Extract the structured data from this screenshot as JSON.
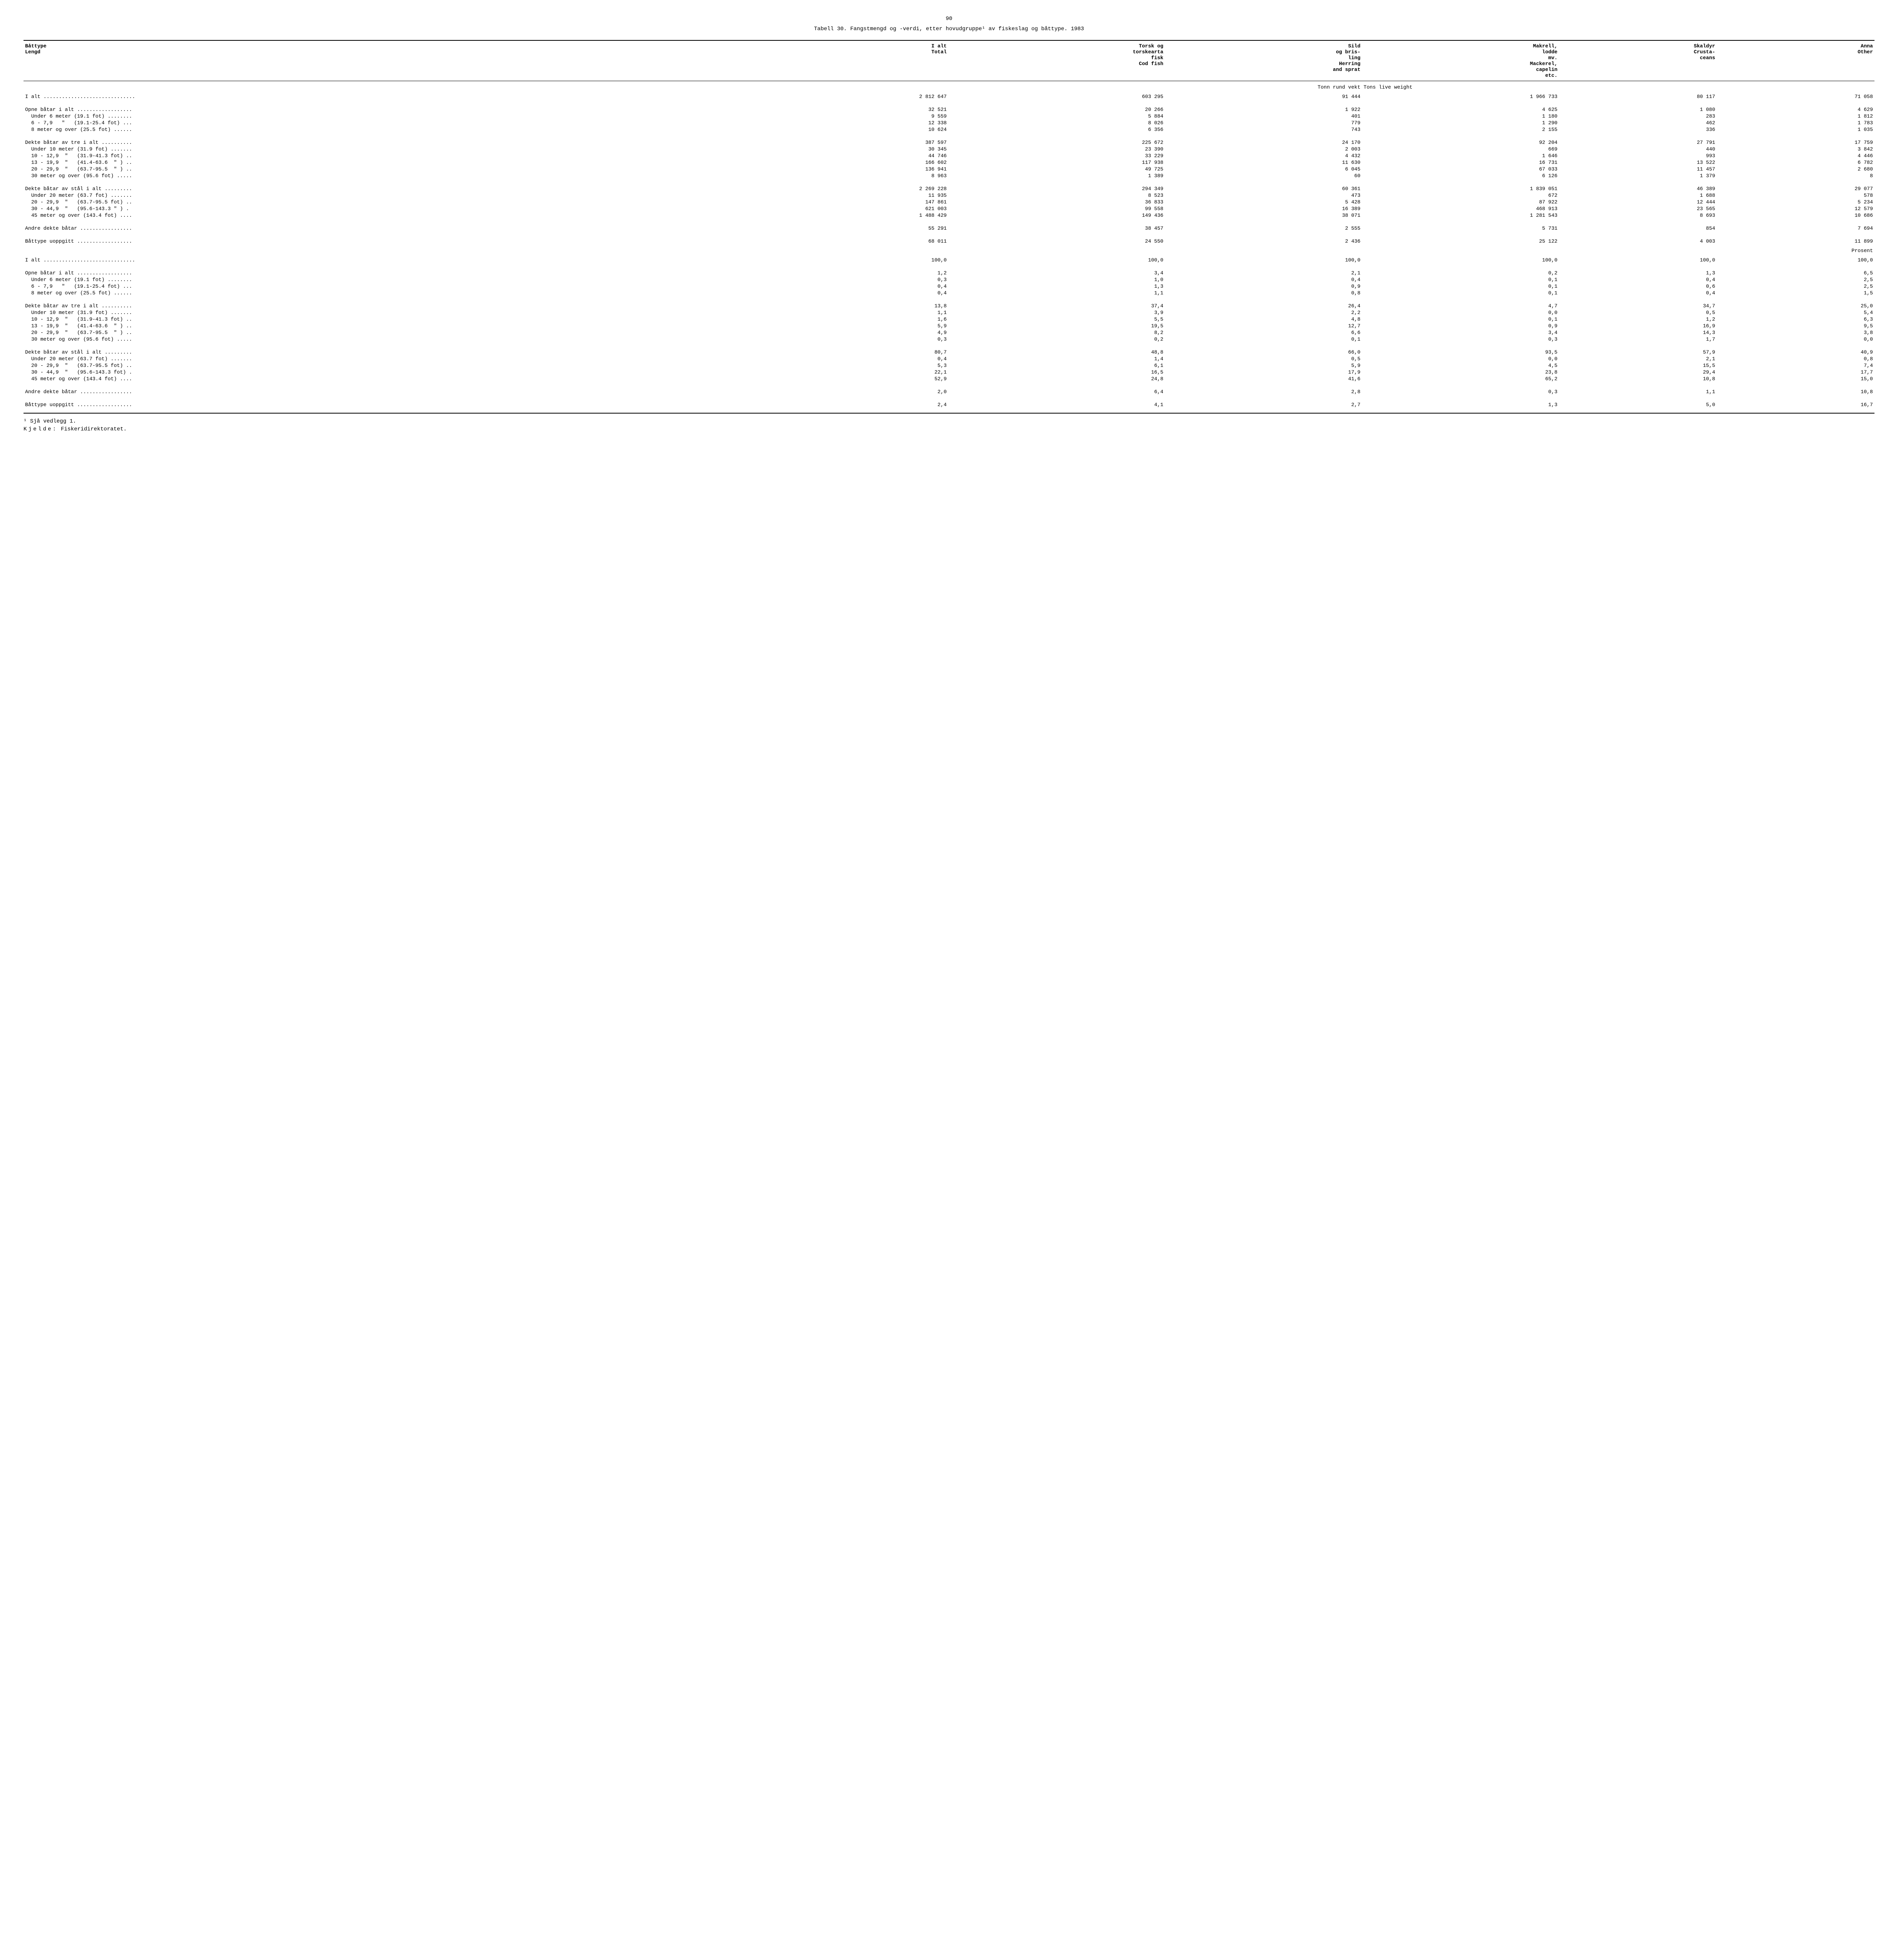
{
  "page_number": "90",
  "title": "Tabell 30.  Fangstmengd og -verdi, etter hovudgruppe¹ av fiskeslag og båttype.  1983",
  "columns": {
    "c0_l1": "Båttype",
    "c0_l2": "Lengd",
    "c1_l1": "I alt",
    "c1_l2": "Total",
    "c2_l1": "Torsk og",
    "c2_l2": "torskearta",
    "c2_l3": "fisk",
    "c2_l4": "Cod fish",
    "c3_l1": "Sild",
    "c3_l2": "og bris-",
    "c3_l3": "ling",
    "c3_l4": "Herring",
    "c3_l5": "and sprat",
    "c4_l0": "Makrell,",
    "c4_l1": "lodde",
    "c4_l2": "mv.",
    "c4_l3": "Mackerel,",
    "c4_l4": "capelin",
    "c4_l5": "etc.",
    "c5_l1": "Skaldyr",
    "c5_l2": "Crusta-",
    "c5_l3": "ceans",
    "c6_l1": "Anna",
    "c6_l2": "Other"
  },
  "unit_left": "Tonn rund vekt",
  "unit_right": "Tons live weight",
  "percent_label": "Prosent",
  "rows_tonn": [
    {
      "label": "I alt ..............................",
      "c1": "2 812 647",
      "c2": "603 295",
      "c3": "91 444",
      "c4": "1 966 733",
      "c5": "80 117",
      "c6": "71 058"
    },
    {
      "spacer": true
    },
    {
      "label": "Opne båtar i alt ..................",
      "c1": "32 521",
      "c2": "20 266",
      "c3": "1 922",
      "c4": "4 625",
      "c5": "1 080",
      "c6": "4 629"
    },
    {
      "label": "  Under 6 meter (19.1 fot) ........",
      "c1": "9 559",
      "c2": "5 884",
      "c3": "401",
      "c4": "1 180",
      "c5": "283",
      "c6": "1 812"
    },
    {
      "label": "  6 - 7,9   \"   (19.1-25.4 fot) ...",
      "c1": "12 338",
      "c2": "8 026",
      "c3": "779",
      "c4": "1 290",
      "c5": "462",
      "c6": "1 783"
    },
    {
      "label": "  8 meter og over (25.5 fot) ......",
      "c1": "10 624",
      "c2": "6 356",
      "c3": "743",
      "c4": "2 155",
      "c5": "336",
      "c6": "1 035"
    },
    {
      "spacer": true
    },
    {
      "label": "Dekte båtar av tre i alt ..........",
      "c1": "387 597",
      "c2": "225 672",
      "c3": "24 170",
      "c4": "92 204",
      "c5": "27 791",
      "c6": "17 759"
    },
    {
      "label": "  Under 10 meter (31.9 fot) .......",
      "c1": "30 345",
      "c2": "23 390",
      "c3": "2 003",
      "c4": "669",
      "c5": "440",
      "c6": "3 842"
    },
    {
      "label": "  10 - 12,9  \"   (31.9-41.3 fot) ..",
      "c1": "44 746",
      "c2": "33 229",
      "c3": "4 432",
      "c4": "1 646",
      "c5": "993",
      "c6": "4 446"
    },
    {
      "label": "  13 - 19,9  \"   (41.4-63.6  \" ) ..",
      "c1": "166 602",
      "c2": "117 938",
      "c3": "11 630",
      "c4": "16 731",
      "c5": "13 522",
      "c6": "6 782"
    },
    {
      "label": "  20 - 29,9  \"   (63.7-95.5  \" ) ..",
      "c1": "136 941",
      "c2": "49 725",
      "c3": "6 045",
      "c4": "67 033",
      "c5": "11 457",
      "c6": "2 680"
    },
    {
      "label": "  30 meter og over (95.6 fot) .....",
      "c1": "8 963",
      "c2": "1 389",
      "c3": "60",
      "c4": "6 126",
      "c5": "1 379",
      "c6": "8"
    },
    {
      "spacer": true
    },
    {
      "label": "Dekte båtar av stål i alt .........",
      "c1": "2 269 228",
      "c2": "294 349",
      "c3": "60 361",
      "c4": "1 839 051",
      "c5": "46 389",
      "c6": "29 077"
    },
    {
      "label": "  Under 20 meter (63.7 fot) .......",
      "c1": "11 935",
      "c2": "8 523",
      "c3": "473",
      "c4": "672",
      "c5": "1 688",
      "c6": "578"
    },
    {
      "label": "  20 - 29,9  \"   (63.7-95.5 fot) ..",
      "c1": "147 861",
      "c2": "36 833",
      "c3": "5 428",
      "c4": "87 922",
      "c5": "12 444",
      "c6": "5 234"
    },
    {
      "label": "  30 - 44,9  \"   (95.6-143.3 \" ) .",
      "c1": "621 003",
      "c2": "99 558",
      "c3": "16 389",
      "c4": "468 913",
      "c5": "23 565",
      "c6": "12 579"
    },
    {
      "label": "  45 meter og over (143.4 fot) ....",
      "c1": "1 488 429",
      "c2": "149 436",
      "c3": "38 071",
      "c4": "1 281 543",
      "c5": "8 693",
      "c6": "10 686"
    },
    {
      "spacer": true
    },
    {
      "label": "Andre dekte båtar .................",
      "c1": "55 291",
      "c2": "38 457",
      "c3": "2 555",
      "c4": "5 731",
      "c5": "854",
      "c6": "7 694"
    },
    {
      "spacer": true
    },
    {
      "label": "Båttype uoppgitt ..................",
      "c1": "68 011",
      "c2": "24 550",
      "c3": "2 436",
      "c4": "25 122",
      "c5": "4 003",
      "c6": "11 899"
    }
  ],
  "rows_pct": [
    {
      "label": "I alt ..............................",
      "c1": "100,0",
      "c2": "100,0",
      "c3": "100,0",
      "c4": "100,0",
      "c5": "100,0",
      "c6": "100,0"
    },
    {
      "spacer": true
    },
    {
      "label": "Opne båtar i alt ..................",
      "c1": "1,2",
      "c2": "3,4",
      "c3": "2,1",
      "c4": "0,2",
      "c5": "1,3",
      "c6": "6,5"
    },
    {
      "label": "  Under 6 meter (19.1 fot) ........",
      "c1": "0,3",
      "c2": "1,0",
      "c3": "0,4",
      "c4": "0,1",
      "c5": "0,4",
      "c6": "2,5"
    },
    {
      "label": "  6 - 7,9   \"   (19.1-25.4 fot) ...",
      "c1": "0,4",
      "c2": "1,3",
      "c3": "0,9",
      "c4": "0,1",
      "c5": "0,6",
      "c6": "2,5"
    },
    {
      "label": "  8 meter og over (25.5 fot) ......",
      "c1": "0,4",
      "c2": "1,1",
      "c3": "0,8",
      "c4": "0,1",
      "c5": "0,4",
      "c6": "1,5"
    },
    {
      "spacer": true
    },
    {
      "label": "Dekte båtar av tre i alt ..........",
      "c1": "13,8",
      "c2": "37,4",
      "c3": "26,4",
      "c4": "4,7",
      "c5": "34,7",
      "c6": "25,0"
    },
    {
      "label": "  Under 10 meter (31.9 fot) .......",
      "c1": "1,1",
      "c2": "3,9",
      "c3": "2,2",
      "c4": "0,0",
      "c5": "0,5",
      "c6": "5,4"
    },
    {
      "label": "  10 - 12,9  \"   (31.9-41.3 fot) ..",
      "c1": "1,6",
      "c2": "5,5",
      "c3": "4,8",
      "c4": "0,1",
      "c5": "1,2",
      "c6": "6,3"
    },
    {
      "label": "  13 - 19,9  \"   (41.4-63.6  \" ) ..",
      "c1": "5,9",
      "c2": "19,5",
      "c3": "12,7",
      "c4": "0,9",
      "c5": "16,9",
      "c6": "9,5"
    },
    {
      "label": "  20 - 29,9  \"   (63.7-95.5  \" ) ..",
      "c1": "4,9",
      "c2": "8,2",
      "c3": "6,6",
      "c4": "3,4",
      "c5": "14,3",
      "c6": "3,8"
    },
    {
      "label": "  30 meter og over (95.6 fot) .....",
      "c1": "0,3",
      "c2": "0,2",
      "c3": "0,1",
      "c4": "0,3",
      "c5": "1,7",
      "c6": "0,0"
    },
    {
      "spacer": true
    },
    {
      "label": "Dekte båtar av stål i alt .........",
      "c1": "80,7",
      "c2": "48,8",
      "c3": "66,0",
      "c4": "93,5",
      "c5": "57,9",
      "c6": "40,9"
    },
    {
      "label": "  Under 20 meter (63.7 fot) .......",
      "c1": "0,4",
      "c2": "1,4",
      "c3": "0,5",
      "c4": "0,0",
      "c5": "2,1",
      "c6": "0,8"
    },
    {
      "label": "  20 - 29,9  \"   (63.7-95.5 fot) ..",
      "c1": "5,3",
      "c2": "6,1",
      "c3": "5,9",
      "c4": "4,5",
      "c5": "15,5",
      "c6": "7,4"
    },
    {
      "label": "  30 - 44,9  \"   (95.6-143.3 fot) .",
      "c1": "22,1",
      "c2": "16,5",
      "c3": "17,9",
      "c4": "23,8",
      "c5": "29,4",
      "c6": "17,7"
    },
    {
      "label": "  45 meter og over (143.4 fot) ....",
      "c1": "52,9",
      "c2": "24,8",
      "c3": "41,6",
      "c4": "65,2",
      "c5": "10,8",
      "c6": "15,0"
    },
    {
      "spacer": true
    },
    {
      "label": "Andre dekte båtar .................",
      "c1": "2,0",
      "c2": "6,4",
      "c3": "2,8",
      "c4": "0,3",
      "c5": "1,1",
      "c6": "10,8"
    },
    {
      "spacer": true
    },
    {
      "label": "Båttype uoppgitt ..................",
      "c1": "2,4",
      "c2": "4,1",
      "c3": "2,7",
      "c4": "1,3",
      "c5": "5,0",
      "c6": "16,7"
    }
  ],
  "footnote1": "¹ Sjå vedlegg 1.",
  "source_label": "Kjelde:",
  "source_value": " Fiskeridirektoratet."
}
